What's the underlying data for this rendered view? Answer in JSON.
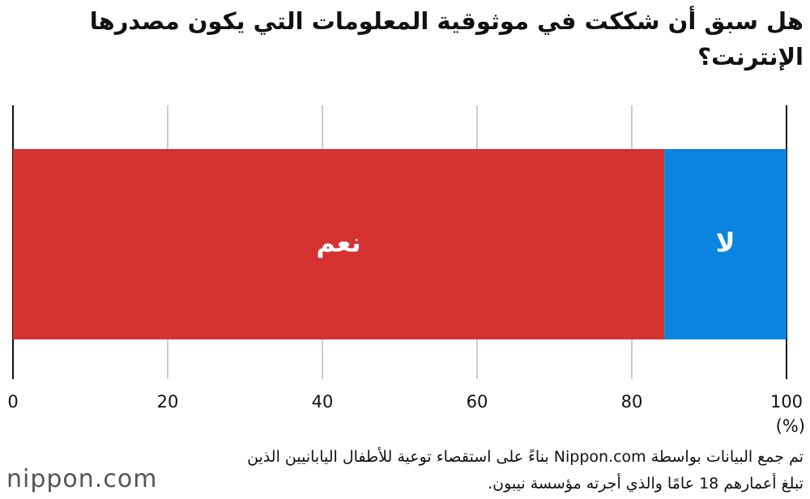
{
  "chart_data": {
    "type": "bar",
    "orientation": "horizontal",
    "stacked": true,
    "title": "هل سبق أن شككت في موثوقية المعلومات التي يكون مصدرها الإنترنت؟",
    "categories": [
      null
    ],
    "series": [
      {
        "name": "نعم",
        "color": "#d63232",
        "values": [
          84.2
        ]
      },
      {
        "name": "لا",
        "color": "#0b84e0",
        "values": [
          15.8
        ]
      }
    ],
    "xlim": [
      0,
      100
    ],
    "xticks": [
      0,
      20,
      40,
      60,
      80,
      100
    ],
    "x_label": "(%)",
    "grid": true,
    "note": "تم جمع البيانات بواسطة Nippon.com بناءً على استقصاء توعية للأطفال اليابانيين الذين تبلغ أعمارهم 18 عامًا والذي أجرته مؤسسة نيبون.",
    "logo": "nippon.com"
  }
}
